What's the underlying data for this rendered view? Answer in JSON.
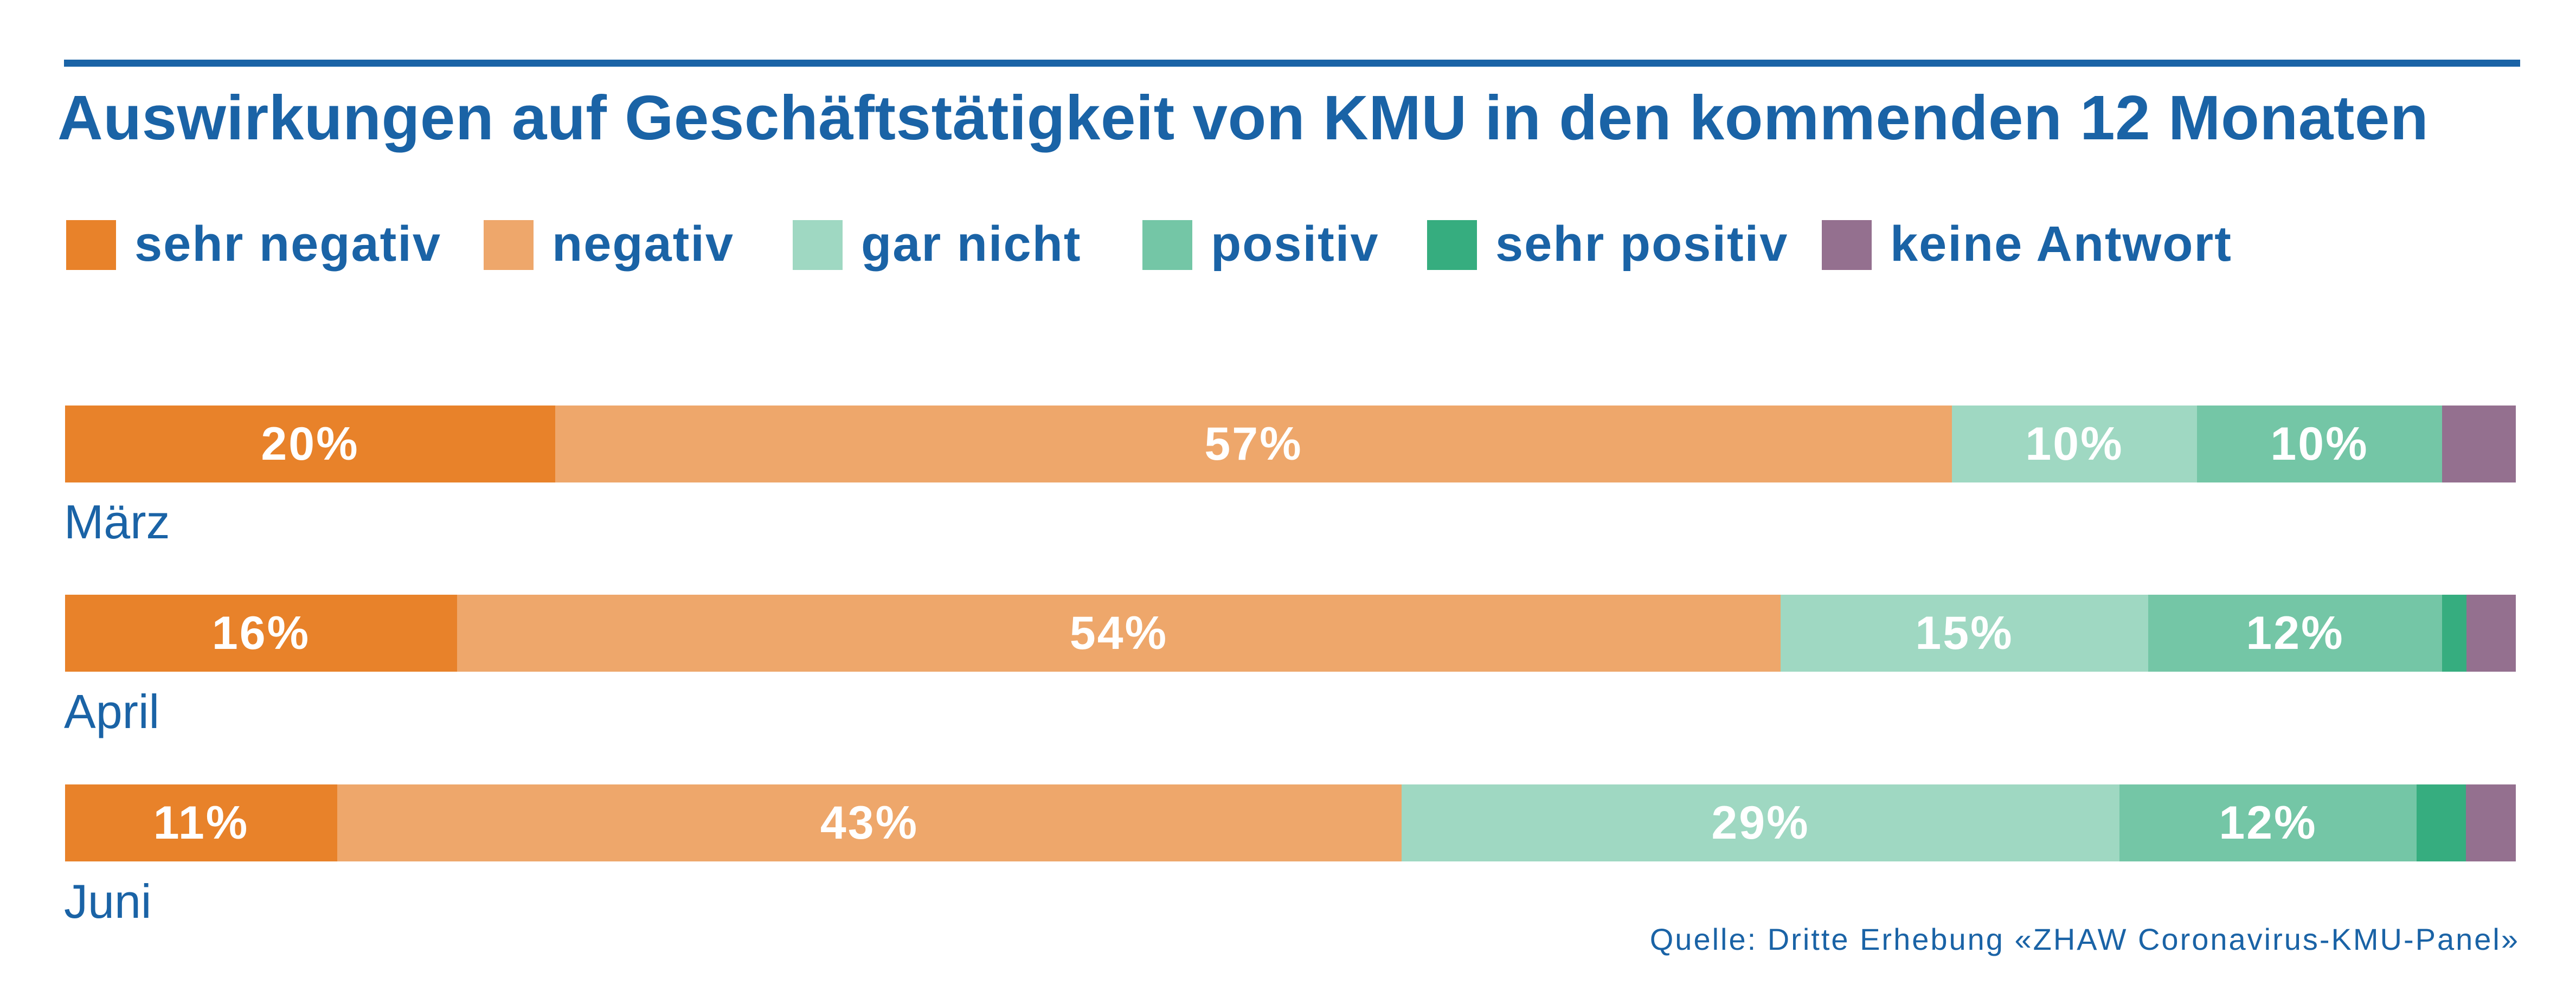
{
  "title": "Auswirkungen auf Geschäftstätigkeit von KMU in den kommenden 12 Monaten",
  "source": "Quelle: Dritte Erhebung «ZHAW Coronavirus-KMU-Panel»",
  "colors": {
    "brand_blue": "#1a63a6",
    "sehr_negativ": "#e8822a",
    "negativ": "#eea76b",
    "gar_nicht": "#9fd8c2",
    "positiv": "#74c6a6",
    "sehr_positiv": "#36ad7f",
    "keine_antwort": "#94708f"
  },
  "chart_data": {
    "type": "bar",
    "orientation": "horizontal",
    "stacked": true,
    "normalized": true,
    "title": "Auswirkungen auf Geschäftstätigkeit von KMU in den kommenden 12 Monaten",
    "categories": [
      "März",
      "April",
      "Juni"
    ],
    "legend_position": "top-left",
    "grid": false,
    "series": [
      {
        "name": "sehr negativ",
        "color": "#e8822a",
        "values": [
          20,
          16,
          11
        ],
        "labels": [
          "20%",
          "16%",
          "11%"
        ]
      },
      {
        "name": "negativ",
        "color": "#eea76b",
        "values": [
          57,
          54,
          43
        ],
        "labels": [
          "57%",
          "54%",
          "43%"
        ]
      },
      {
        "name": "gar nicht",
        "color": "#9fd8c2",
        "values": [
          10,
          15,
          29
        ],
        "labels": [
          "10%",
          "15%",
          "29%"
        ]
      },
      {
        "name": "positiv",
        "color": "#74c6a6",
        "values": [
          10,
          12,
          12
        ],
        "labels": [
          "10%",
          "12%",
          "12%"
        ]
      },
      {
        "name": "sehr positiv",
        "color": "#36ad7f",
        "values": [
          0,
          1,
          2
        ],
        "labels": [
          "",
          "",
          ""
        ]
      },
      {
        "name": "keine Antwort",
        "color": "#94708f",
        "values": [
          3,
          2,
          2
        ],
        "labels": [
          "",
          "",
          ""
        ]
      }
    ]
  }
}
